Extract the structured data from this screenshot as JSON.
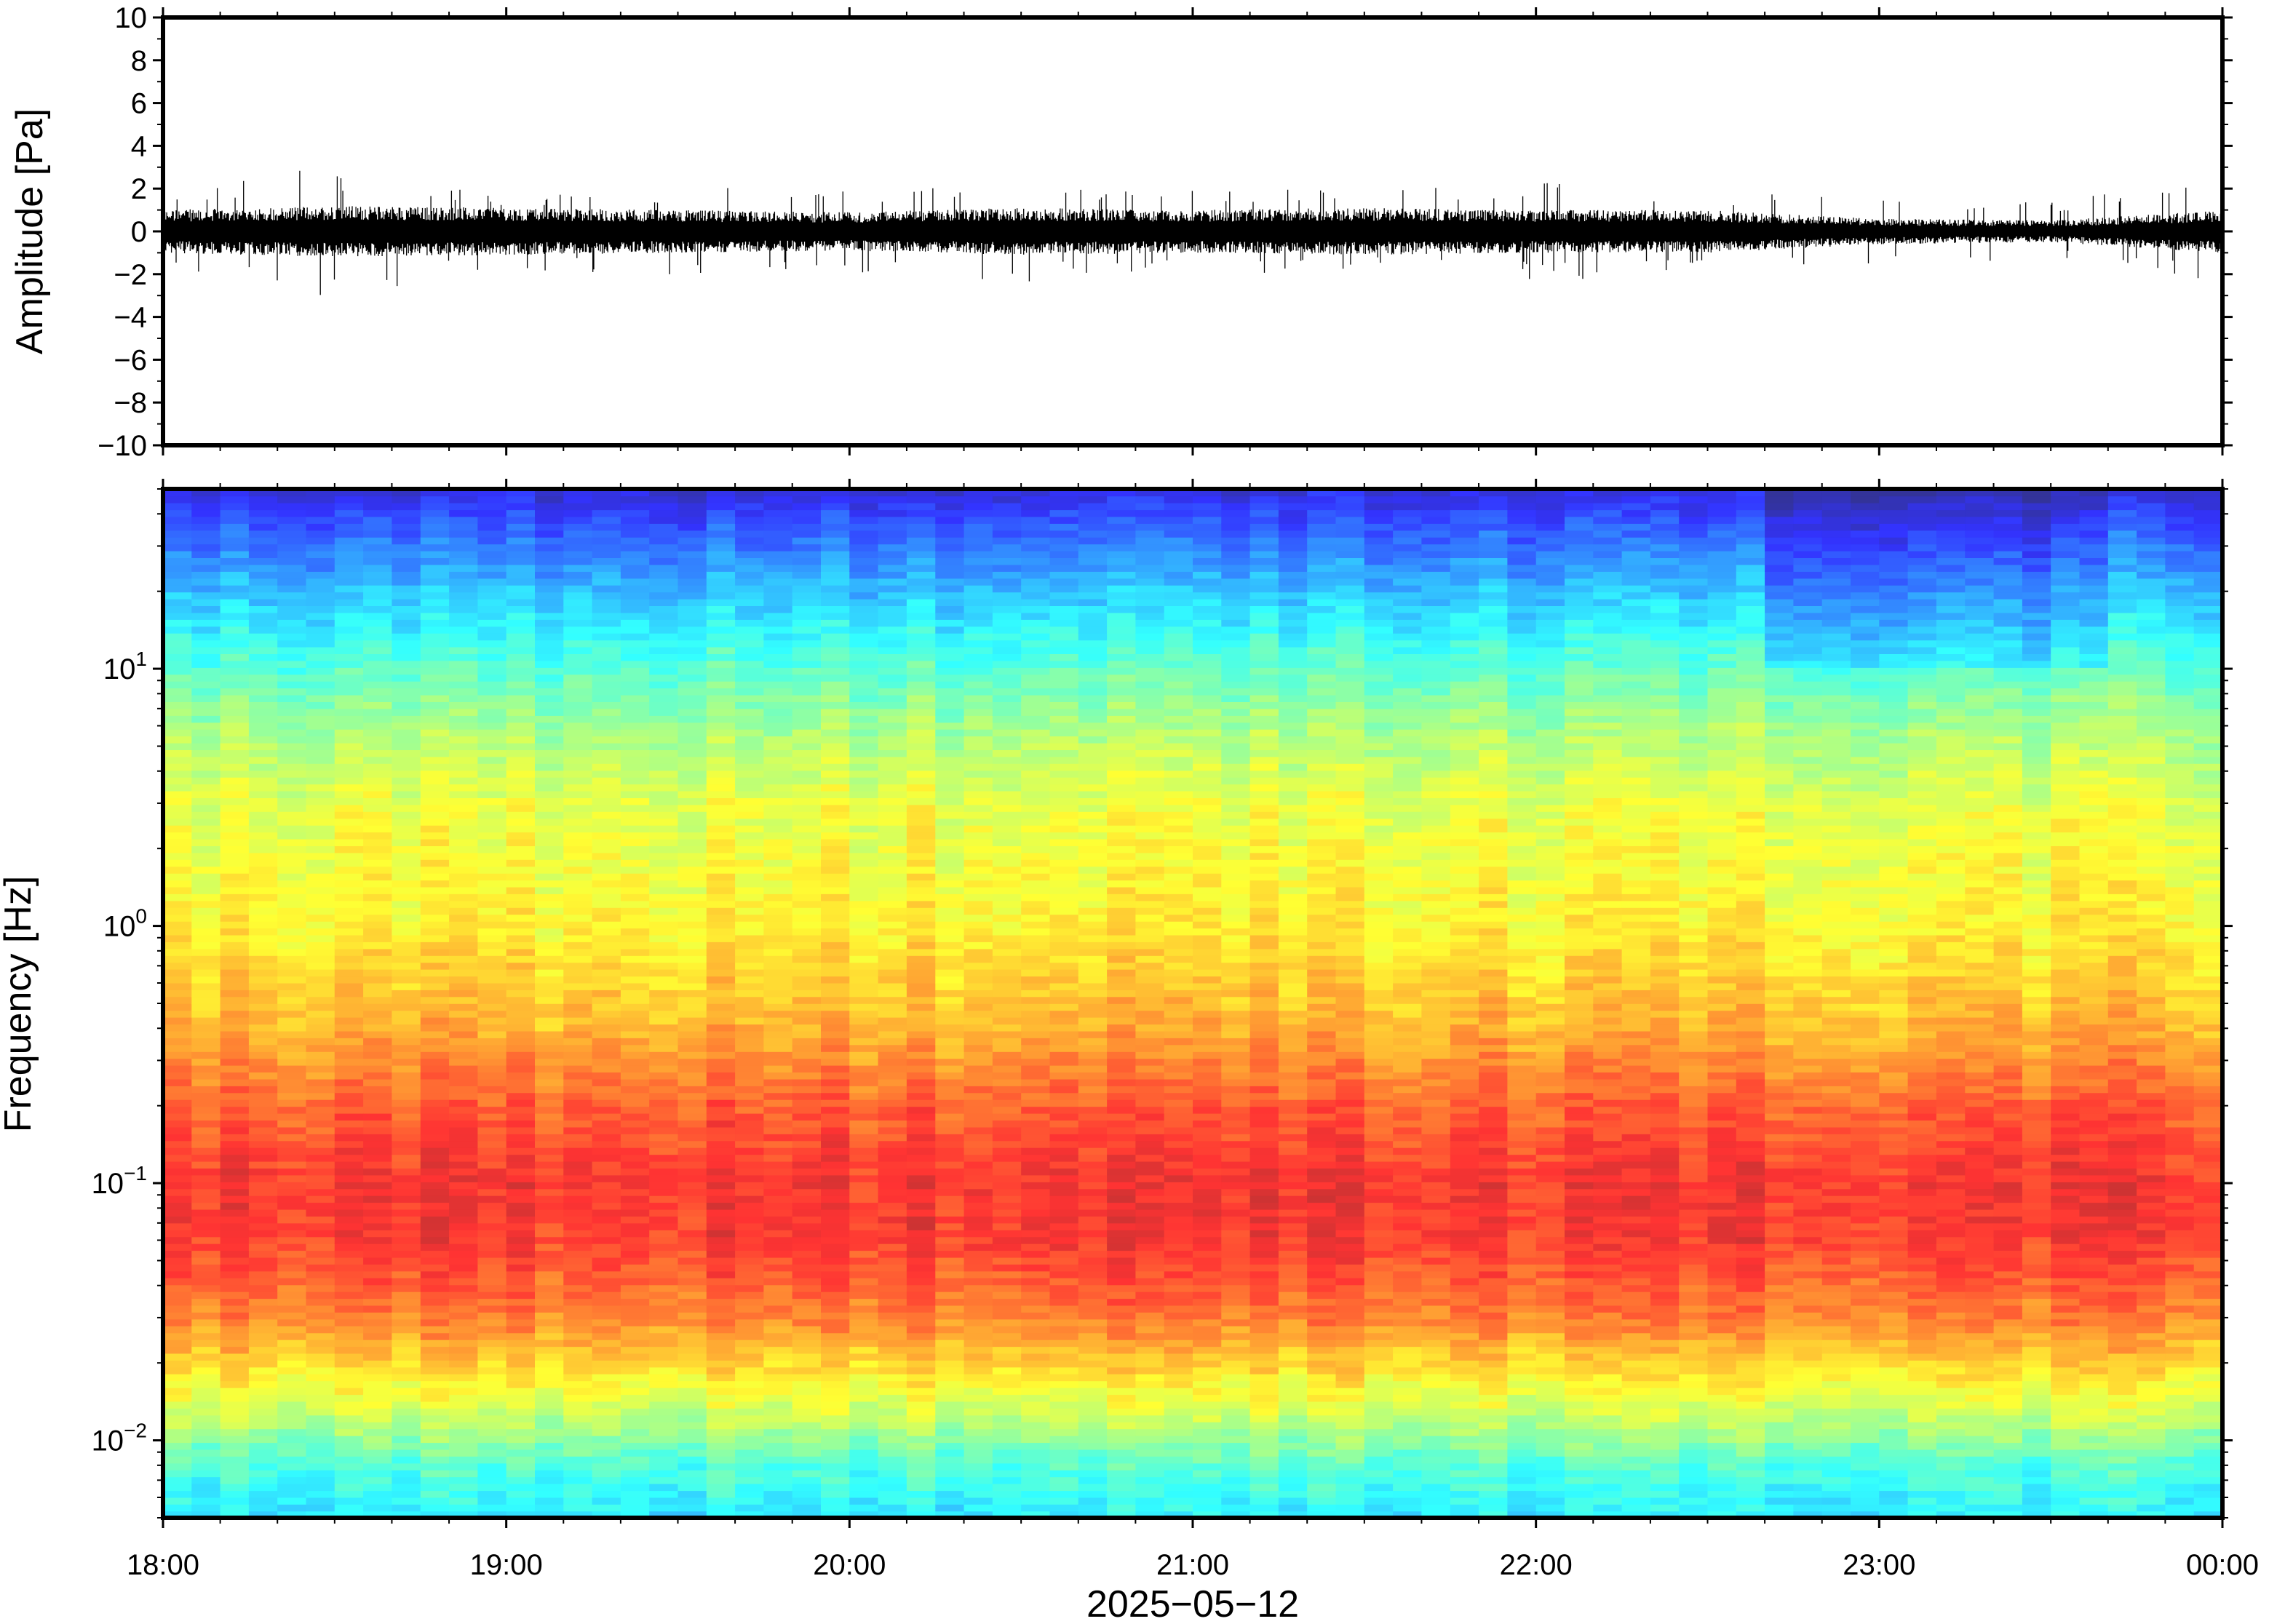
{
  "chart_data": [
    {
      "type": "line",
      "panel": "waveform",
      "ylabel": "Amplitude [Pa]",
      "ylim": [
        -10,
        10
      ],
      "yticks": [
        -10,
        -8,
        -6,
        -4,
        -2,
        0,
        2,
        4,
        6,
        8,
        10
      ],
      "ytick_labels": [
        "−10",
        "−8",
        "−6",
        "−4",
        "−2",
        "0",
        "2",
        "4",
        "6",
        "8",
        "10"
      ],
      "x_range": [
        "18:00",
        "00:00"
      ],
      "baseline": 0,
      "envelope": {
        "times_h": [
          0.0,
          0.5,
          1.0,
          1.5,
          2.0,
          2.5,
          3.0,
          3.5,
          4.0,
          4.5,
          5.0,
          5.5,
          6.0
        ],
        "typical_amplitude_pa": [
          1.0,
          1.2,
          1.1,
          1.0,
          0.9,
          1.1,
          1.0,
          1.1,
          1.0,
          1.0,
          0.6,
          0.5,
          1.0
        ],
        "peak_pa": [
          2.0,
          3.1,
          1.8,
          2.2,
          2.0,
          2.4,
          2.0,
          1.9,
          2.3,
          2.1,
          1.5,
          1.4,
          2.5
        ]
      },
      "color": "#000000"
    },
    {
      "type": "heatmap",
      "panel": "spectrogram",
      "ylabel": "Frequency [Hz]",
      "yscale": "log",
      "ylim": [
        0.005,
        50
      ],
      "yticks": [
        0.01,
        0.1,
        1,
        10
      ],
      "ytick_labels": [
        {
          "base": "10",
          "exp": "−2"
        },
        {
          "base": "10",
          "exp": "−1"
        },
        {
          "base": "10",
          "exp": "0"
        },
        {
          "base": "10",
          "exp": "1"
        }
      ],
      "colormap": "jet",
      "profile_freq_hz": [
        0.005,
        0.008,
        0.012,
        0.018,
        0.03,
        0.06,
        0.1,
        0.2,
        0.4,
        1.0,
        3.0,
        6.0,
        12.0,
        20.0,
        35.0,
        50.0
      ],
      "profile_relative_power": [
        0.35,
        0.42,
        0.55,
        0.65,
        0.78,
        0.87,
        0.88,
        0.82,
        0.72,
        0.64,
        0.6,
        0.52,
        0.4,
        0.3,
        0.18,
        0.08
      ]
    }
  ],
  "x_axis": {
    "xlabel": "2025−05−12",
    "tick_labels": [
      "18:00",
      "19:00",
      "20:00",
      "21:00",
      "22:00",
      "23:00",
      "00:00"
    ],
    "minor_ticks_per_hour": 6
  }
}
